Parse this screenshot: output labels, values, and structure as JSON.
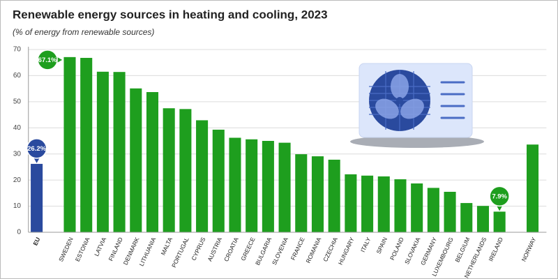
{
  "chart_data": {
    "type": "bar",
    "title": "Renewable energy sources in heating and cooling, 2023",
    "subtitle": "(% of energy from renewable sources)",
    "categories": [
      "EU",
      null,
      "SWEDEN",
      "ESTONIA",
      "LATVIA",
      "FINLAND",
      "DENMARK",
      "LITHUANIA",
      "MALTA",
      "PORTUGAL",
      "CYPRUS",
      "AUSTRIA",
      "CROATIA",
      "GREECE",
      "BULGARIA",
      "SLOVENIA",
      "FRANCE",
      "ROMANIA",
      "CZECHIA",
      "HUNGARY",
      "ITALY",
      "SPAIN",
      "POLAND",
      "SLOVAKIA",
      "GERMANY",
      "LUXEMBOURG",
      "BELGIUM",
      "NETHERLANDS",
      "IRELAND",
      null,
      "NORWAY"
    ],
    "values": [
      26.2,
      null,
      67.1,
      66.8,
      61.5,
      61.4,
      55.1,
      53.7,
      47.5,
      47.2,
      42.9,
      39.3,
      36.2,
      35.6,
      35.0,
      34.3,
      29.9,
      29.1,
      27.8,
      22.2,
      21.7,
      21.4,
      20.3,
      18.7,
      17.0,
      15.5,
      11.2,
      10.1,
      7.9,
      null,
      33.6
    ],
    "value_labels": [
      "26.2%",
      null,
      "67.1%",
      null,
      null,
      null,
      null,
      null,
      null,
      null,
      null,
      null,
      null,
      null,
      null,
      null,
      null,
      null,
      null,
      null,
      null,
      null,
      null,
      null,
      null,
      null,
      null,
      null,
      "7.9%",
      null,
      null
    ],
    "colors": [
      "#2a4a9e",
      null,
      "#1e9e1e",
      "#1e9e1e",
      "#1e9e1e",
      "#1e9e1e",
      "#1e9e1e",
      "#1e9e1e",
      "#1e9e1e",
      "#1e9e1e",
      "#1e9e1e",
      "#1e9e1e",
      "#1e9e1e",
      "#1e9e1e",
      "#1e9e1e",
      "#1e9e1e",
      "#1e9e1e",
      "#1e9e1e",
      "#1e9e1e",
      "#1e9e1e",
      "#1e9e1e",
      "#1e9e1e",
      "#1e9e1e",
      "#1e9e1e",
      "#1e9e1e",
      "#1e9e1e",
      "#1e9e1e",
      "#1e9e1e",
      "#1e9e1e",
      null,
      "#1e9e1e"
    ],
    "ylim": [
      0,
      70
    ],
    "yticks": [
      0,
      10,
      20,
      30,
      40,
      50,
      60,
      70
    ],
    "grid": true
  }
}
